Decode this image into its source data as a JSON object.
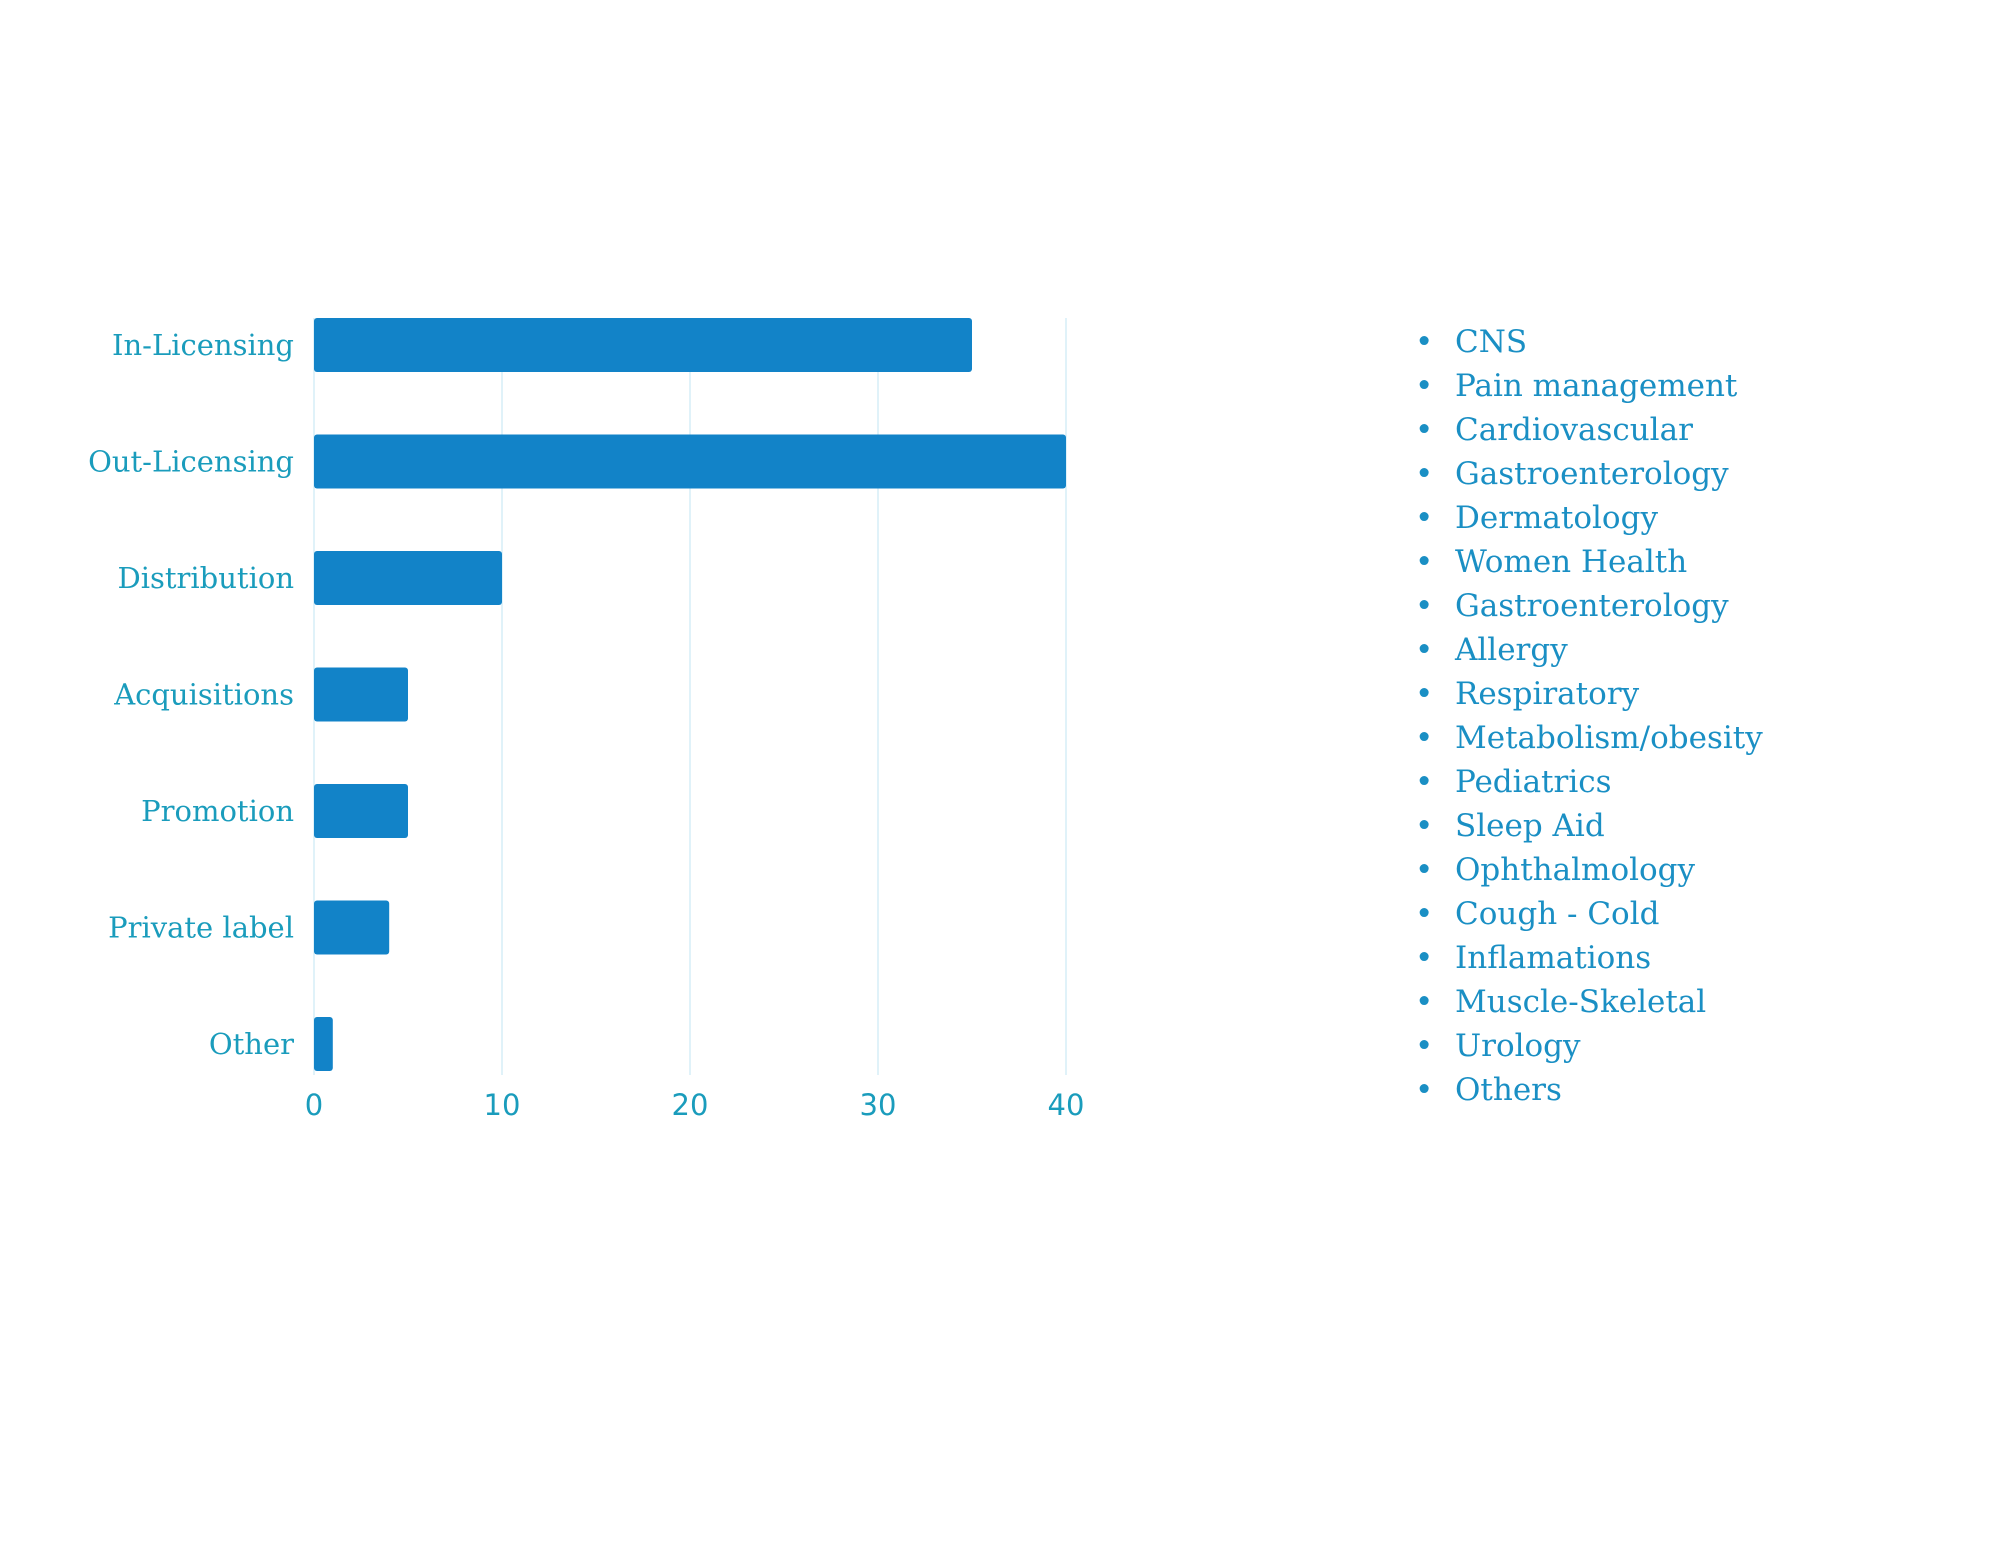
{
  "colors": {
    "bar": "#1283c8",
    "text": "#1a9cbc",
    "grid": "#d6eef7",
    "legend_text": "#1a8fc4",
    "background": "#ffffff"
  },
  "chart_data": {
    "type": "bar",
    "orientation": "horizontal",
    "categories": [
      "In-Licensing",
      "Out-Licensing",
      "Distribution",
      "Acquisitions",
      "Promotion",
      "Private label",
      "Other"
    ],
    "values": [
      35,
      40,
      10,
      5,
      5,
      4,
      1
    ],
    "xlim": [
      0,
      40
    ],
    "xticks": [
      "0",
      "10",
      "20",
      "30",
      "40"
    ],
    "grid": "vertical",
    "legend": "none"
  },
  "side_list": {
    "bullet": "•",
    "items": [
      "CNS",
      "Pain management",
      "Cardiovascular",
      "Gastroenterology",
      "Dermatology",
      "Women Health",
      "Gastroenterology",
      "Allergy",
      "Respiratory",
      "Metabolism/obesity",
      "Pediatrics",
      "Sleep Aid",
      "Ophthalmology",
      "Cough - Cold",
      "Inflamations",
      "Muscle-Skeletal",
      "Urology",
      "Others"
    ]
  }
}
